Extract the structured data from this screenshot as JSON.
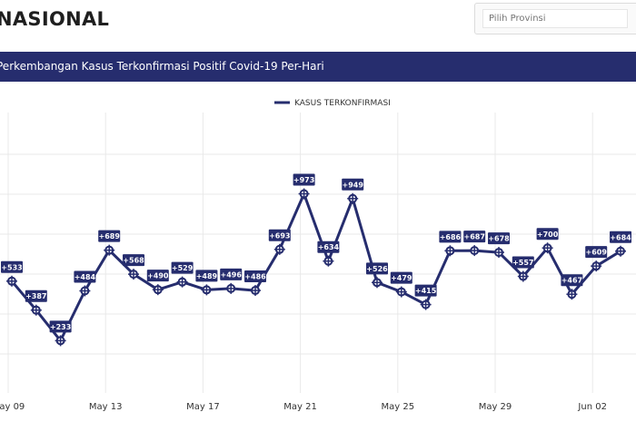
{
  "header": {
    "title": "NASIONAL"
  },
  "province_select": {
    "placeholder": "Pilih Provinsi"
  },
  "chart_panel": {
    "title": "Perkembangan Kasus Terkonfirmasi Positif Covid-19 Per-Hari"
  },
  "colors": {
    "header_bg": "#262d6e",
    "series": "#262d6e",
    "label_bg": "#262d6e",
    "grid": "#e9e9e9"
  },
  "chart_data": {
    "type": "line",
    "title": "Perkembangan Kasus Terkonfirmasi Positif Covid-19 Per-Hari",
    "x": [
      "2020-05-09",
      "2020-05-10",
      "2020-05-11",
      "2020-05-12",
      "2020-05-13",
      "2020-05-14",
      "2020-05-15",
      "2020-05-16",
      "2020-05-17",
      "2020-05-18",
      "2020-05-19",
      "2020-05-20",
      "2020-05-21",
      "2020-05-22",
      "2020-05-23",
      "2020-05-24",
      "2020-05-25",
      "2020-05-26",
      "2020-05-27",
      "2020-05-28",
      "2020-05-29",
      "2020-05-30",
      "2020-05-31",
      "2020-06-01",
      "2020-06-02",
      "2020-06-03"
    ],
    "series": [
      {
        "name": "KASUS TERKONFIRMASI",
        "values": [
          533,
          387,
          233,
          484,
          689,
          568,
          490,
          529,
          489,
          496,
          486,
          693,
          973,
          634,
          949,
          526,
          479,
          415,
          686,
          687,
          678,
          557,
          700,
          467,
          609,
          684
        ],
        "labels": [
          "+533",
          "+387",
          "+233",
          "+484",
          "+689",
          "+568",
          "+490",
          "+529",
          "+489",
          "+496",
          "+486",
          "+693",
          "+973",
          "+634",
          "+949",
          "+526",
          "+479",
          "+415",
          "+686",
          "+687",
          "+678",
          "+557",
          "+700",
          "+467",
          "+609",
          "+684"
        ]
      }
    ],
    "x_tick_labels": [
      "May 09",
      "May 13",
      "May 17",
      "May 21",
      "May 25",
      "May 29",
      "Jun 02"
    ],
    "legend": "top-center",
    "grid": true
  }
}
